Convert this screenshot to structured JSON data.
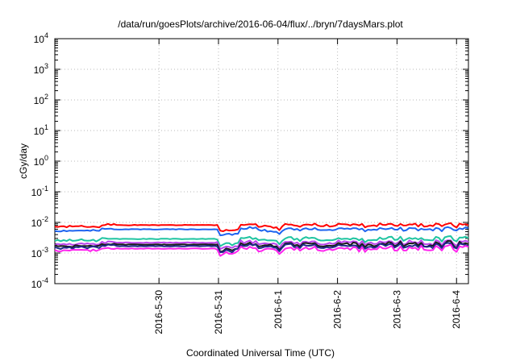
{
  "chart_data": {
    "type": "line",
    "title": "/data/run/goesPlots/archive/2016-06-04/flux/../bryn/7daysMars.plot",
    "xlabel": "Coordinated Universal Time (UTC)",
    "ylabel": "cGy/day",
    "y_scale": "log",
    "ylim_exponents": [
      -4,
      4
    ],
    "y_tick_exponents": [
      -4,
      -3,
      -2,
      -1,
      0,
      1,
      2,
      3,
      4
    ],
    "y_tick_base": "10",
    "xlim_days": [
      -1.75,
      5.2
    ],
    "x_ticks": [
      {
        "label": "2016-5-30",
        "day": 0
      },
      {
        "label": "2016-5-31",
        "day": 1
      },
      {
        "label": "2016-6-1",
        "day": 2
      },
      {
        "label": "2016-6-2",
        "day": 3
      },
      {
        "label": "2016-6-3",
        "day": 4
      },
      {
        "label": "2016-6-4",
        "day": 5
      }
    ],
    "grid": true,
    "series": [
      {
        "color": "#ff0000",
        "base": 0.0082,
        "amp": 0.12,
        "pk": 0.05,
        "seed": 1
      },
      {
        "color": "#1e64f0",
        "base": 0.006,
        "amp": 0.1,
        "pk": 0.04,
        "seed": 2
      },
      {
        "color": "#1fc4a0",
        "base": 0.0029,
        "amp": 0.16,
        "pk": 0.05,
        "seed": 3
      },
      {
        "color": "#bb44ee",
        "base": 0.0022,
        "amp": 0.18,
        "pk": 0.06,
        "seed": 4
      },
      {
        "color": "#1a1a1a",
        "base": 0.0019,
        "amp": 0.18,
        "pk": 0.06,
        "seed": 5
      },
      {
        "color": "#1e2a8a",
        "base": 0.0017,
        "amp": 0.18,
        "pk": 0.06,
        "seed": 6
      },
      {
        "color": "#ff22ee",
        "base": 0.0014,
        "amp": 0.2,
        "pk": 0.07,
        "seed": 7
      }
    ]
  }
}
